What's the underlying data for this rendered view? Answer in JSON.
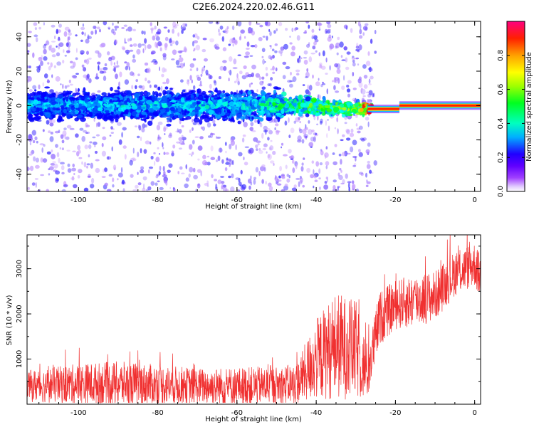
{
  "title": "C2E6.2024.220.02.46.G11",
  "colors": {
    "snr_line": "#f03030",
    "frame": "#000000"
  },
  "chart_data": [
    {
      "type": "heatmap",
      "name": "spectrogram",
      "xlabel": "Height of straight line (km)",
      "ylabel": "Frequency (Hz)",
      "xlim": [
        -113,
        1.5
      ],
      "ylim": [
        -50,
        49
      ],
      "x_ticks": [
        -100,
        -80,
        -60,
        -40,
        -20,
        0
      ],
      "x_tick_labels": [
        "-100",
        "-80",
        "-60",
        "-40",
        "-20",
        "0"
      ],
      "y_ticks": [
        -40,
        -20,
        0,
        20,
        40
      ],
      "y_tick_labels": [
        "-40",
        "-20",
        "0",
        "20",
        "40"
      ],
      "colorscale": "hsv-reversed (purple to red)",
      "colorbar": {
        "label": "Normalized spectral amplitude",
        "range": [
          0,
          1
        ],
        "ticks": [
          0.0,
          0.2,
          0.4,
          0.6,
          0.8
        ],
        "tick_labels": [
          "0.0",
          "0.2",
          "0.4",
          "0.6",
          "0.8"
        ]
      },
      "ridge_frequency_hz": [
        {
          "height_km": -113,
          "frequency_hz": 0,
          "amplitude": 0.3
        },
        {
          "height_km": -60,
          "frequency_hz": 0,
          "amplitude": 0.35
        },
        {
          "height_km": -45,
          "frequency_hz": 0,
          "amplitude": 0.5
        },
        {
          "height_km": -30,
          "frequency_hz": -2,
          "amplitude": 0.6
        },
        {
          "height_km": -27,
          "frequency_hz": -2,
          "amplitude": 0.9
        },
        {
          "height_km": -20,
          "frequency_hz": -2,
          "amplitude": 0.95
        },
        {
          "height_km": -18,
          "frequency_hz": 0,
          "amplitude": 0.95
        },
        {
          "height_km": 0,
          "frequency_hz": 0,
          "amplitude": 0.95
        }
      ]
    },
    {
      "type": "line",
      "name": "snr",
      "xlabel": "Height of straight line (km)",
      "ylabel": "SNR (10 * v/v)",
      "xlim": [
        -113,
        1.5
      ],
      "ylim": [
        0,
        3750
      ],
      "x_ticks": [
        -100,
        -80,
        -60,
        -40,
        -20,
        0
      ],
      "x_tick_labels": [
        "-100",
        "-80",
        "-60",
        "-40",
        "-20",
        "0"
      ],
      "y_ticks": [
        1000,
        2000,
        3000
      ],
      "y_tick_labels": [
        "1000",
        "2000",
        "3000"
      ],
      "envelope": [
        {
          "x": -113,
          "mean": 400,
          "amp": 350
        },
        {
          "x": -100,
          "mean": 450,
          "amp": 450
        },
        {
          "x": -90,
          "mean": 450,
          "amp": 500
        },
        {
          "x": -80,
          "mean": 430,
          "amp": 450
        },
        {
          "x": -70,
          "mean": 400,
          "amp": 400
        },
        {
          "x": -60,
          "mean": 400,
          "amp": 420
        },
        {
          "x": -50,
          "mean": 420,
          "amp": 420
        },
        {
          "x": -45,
          "mean": 450,
          "amp": 450
        },
        {
          "x": -40,
          "mean": 1000,
          "amp": 900
        },
        {
          "x": -35,
          "mean": 1300,
          "amp": 1200
        },
        {
          "x": -30,
          "mean": 1200,
          "amp": 1100
        },
        {
          "x": -27,
          "mean": 700,
          "amp": 600
        },
        {
          "x": -24,
          "mean": 1900,
          "amp": 600
        },
        {
          "x": -20,
          "mean": 2200,
          "amp": 550
        },
        {
          "x": -15,
          "mean": 2300,
          "amp": 600
        },
        {
          "x": -10,
          "mean": 2400,
          "amp": 550
        },
        {
          "x": -5,
          "mean": 2900,
          "amp": 500
        },
        {
          "x": 0,
          "mean": 3100,
          "amp": 500
        },
        {
          "x": 1.5,
          "mean": 2800,
          "amp": 500
        }
      ]
    }
  ]
}
